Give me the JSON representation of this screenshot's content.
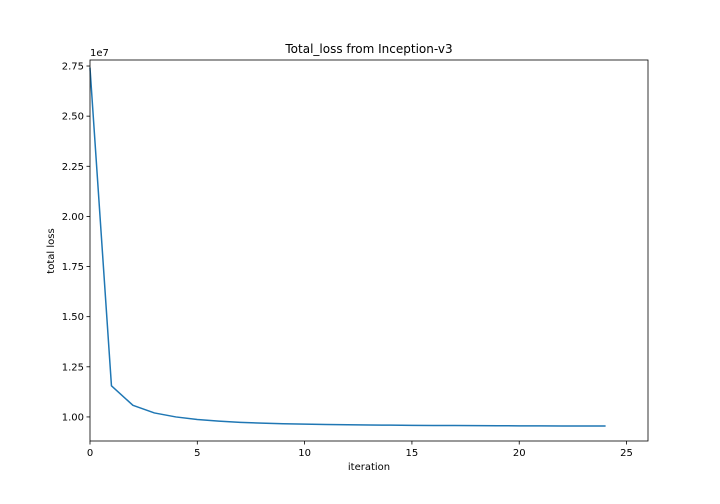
{
  "chart_data": {
    "type": "line",
    "title": "Total_loss from Inception-v3",
    "xlabel": "iteration",
    "ylabel": "total loss",
    "y_offset_label": "1e7",
    "y_scale": 10000000,
    "xlim": [
      0,
      26
    ],
    "ylim": [
      8800000,
      27800000
    ],
    "x_ticks": [
      0,
      5,
      10,
      15,
      20,
      25
    ],
    "x_tick_labels": [
      "0",
      "5",
      "10",
      "15",
      "20",
      "25"
    ],
    "y_ticks": [
      10000000,
      12500000,
      15000000,
      17500000,
      20000000,
      22500000,
      25000000,
      27500000
    ],
    "y_tick_labels": [
      "1.00",
      "1.25",
      "1.50",
      "1.75",
      "2.00",
      "2.25",
      "2.50",
      "2.75"
    ],
    "grid": false,
    "series": [
      {
        "color": "#1f77b4",
        "x": [
          0,
          1,
          2,
          3,
          4,
          5,
          6,
          7,
          8,
          9,
          10,
          11,
          12,
          13,
          14,
          15,
          16,
          17,
          18,
          19,
          20,
          21,
          22,
          23,
          24
        ],
        "y": [
          27400000,
          11550000,
          10580000,
          10200000,
          10000000,
          9870000,
          9790000,
          9730000,
          9690000,
          9660000,
          9640000,
          9620000,
          9610000,
          9600000,
          9590000,
          9580000,
          9575000,
          9570000,
          9565000,
          9560000,
          9555000,
          9552000,
          9550000,
          9548000,
          9545000
        ]
      }
    ]
  }
}
